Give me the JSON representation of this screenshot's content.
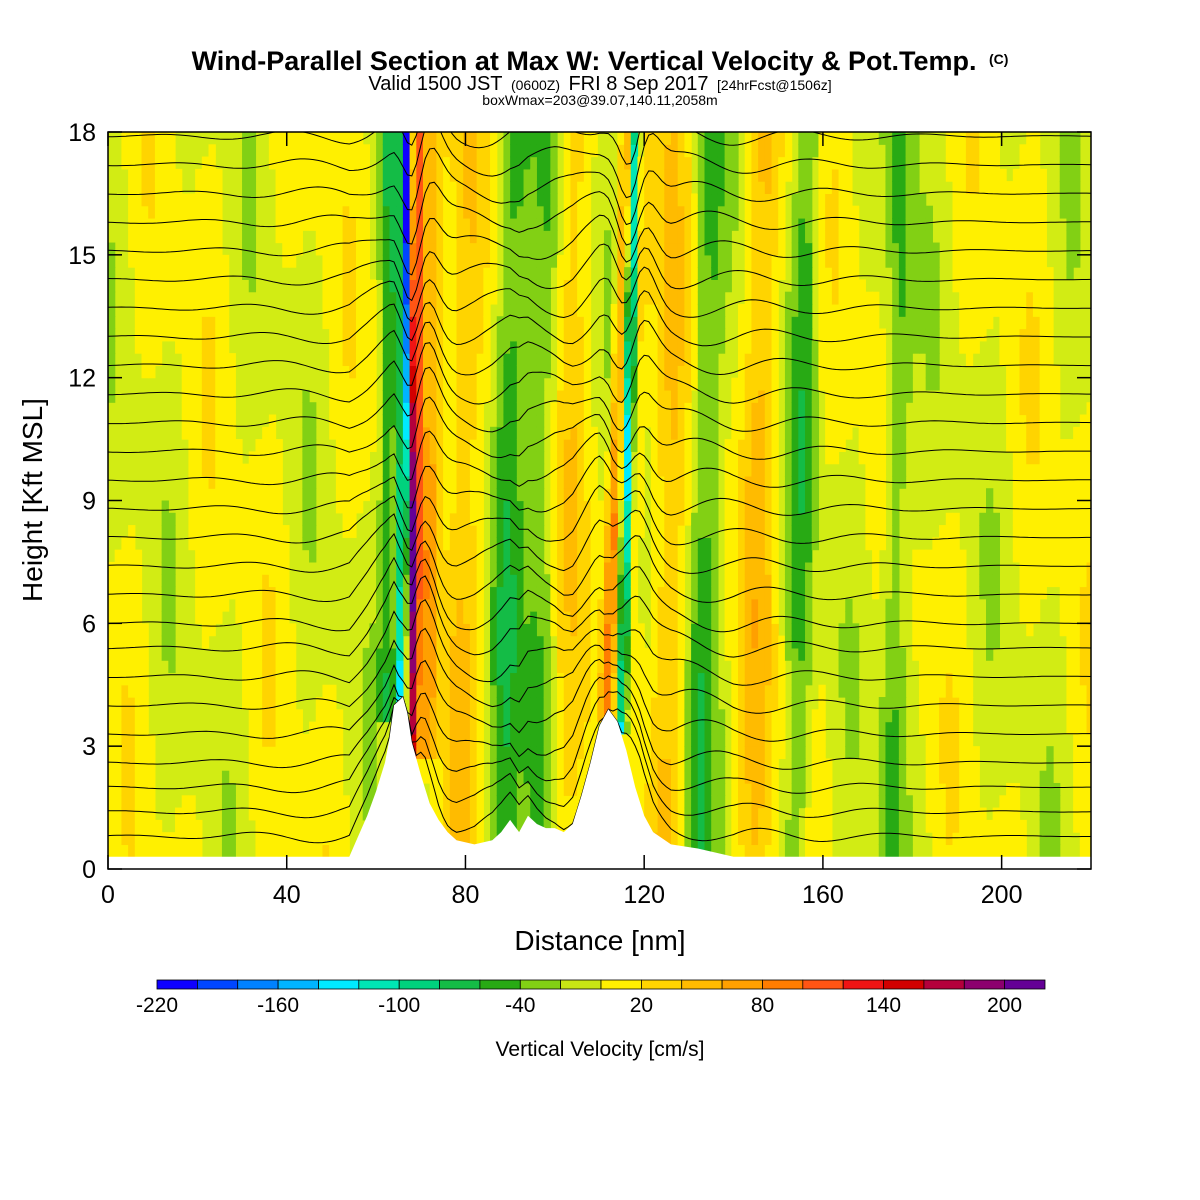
{
  "figure": {
    "title": "Wind-Parallel Section at Max W: Vertical Velocity & Pot.Temp.",
    "title_mark": "(C)",
    "subtitle_part1": "Valid 1500 JST",
    "subtitle_utc": "(0600Z)",
    "subtitle_part2": "FRI 8 Sep 2017",
    "subtitle_fcst": "[24hrFcst@1506z]",
    "subtitle2": "boxWmax=203@39.07,140.11,2058m"
  },
  "chart_data": {
    "type": "heatmap",
    "xlabel": "Distance [nm]",
    "ylabel": "Height [Kft MSL]",
    "xlim": [
      0,
      220
    ],
    "ylim": [
      0,
      18
    ],
    "xticks": [
      0,
      40,
      80,
      120,
      160,
      200
    ],
    "yticks": [
      0,
      3,
      6,
      9,
      12,
      15,
      18
    ],
    "terrain": [
      [
        0,
        0.3
      ],
      [
        54,
        0.3
      ],
      [
        56,
        0.8
      ],
      [
        58,
        1.3
      ],
      [
        60,
        1.9
      ],
      [
        62,
        2.6
      ],
      [
        63,
        3.2
      ],
      [
        64,
        4.0
      ],
      [
        66,
        4.2
      ],
      [
        67,
        3.8
      ],
      [
        68,
        3.1
      ],
      [
        70,
        2.3
      ],
      [
        72,
        1.6
      ],
      [
        74,
        1.2
      ],
      [
        76,
        0.9
      ],
      [
        78,
        0.7
      ],
      [
        82,
        0.6
      ],
      [
        86,
        0.7
      ],
      [
        88,
        0.9
      ],
      [
        90,
        1.2
      ],
      [
        92,
        0.9
      ],
      [
        94,
        1.3
      ],
      [
        96,
        1.1
      ],
      [
        98,
        1.0
      ],
      [
        100,
        1.0
      ],
      [
        102,
        0.9
      ],
      [
        104,
        1.1
      ],
      [
        106,
        1.8
      ],
      [
        108,
        2.6
      ],
      [
        110,
        3.5
      ],
      [
        112,
        3.9
      ],
      [
        114,
        3.6
      ],
      [
        116,
        2.9
      ],
      [
        118,
        2.0
      ],
      [
        120,
        1.3
      ],
      [
        122,
        0.9
      ],
      [
        126,
        0.6
      ],
      [
        132,
        0.5
      ],
      [
        136,
        0.4
      ],
      [
        140,
        0.3
      ],
      [
        220,
        0.3
      ]
    ],
    "updrafts": [
      {
        "x_base": 67.5,
        "x_top": 69,
        "y_base": 3.0,
        "y_top": 18,
        "peak_w": 203
      },
      {
        "x_base": 111.5,
        "x_top": 116,
        "y_base": 4.0,
        "y_top": 18,
        "peak_w": 110
      }
    ],
    "downdrafts": [
      {
        "x_base": 66,
        "x_top": 67,
        "y_base": 4.0,
        "y_top": 18,
        "min_w": -220
      },
      {
        "x_base": 115,
        "x_top": 118,
        "y_base": 3.5,
        "y_top": 18,
        "min_w": -150
      }
    ],
    "isentrope_heights": [
      0.8,
      1.4,
      2.0,
      2.6,
      3.3,
      4.0,
      4.7,
      5.4,
      6.0,
      6.7,
      7.4,
      8.1,
      8.8,
      9.5,
      10.2,
      10.9,
      11.6,
      12.3,
      13.0,
      13.7,
      14.4,
      15.1,
      15.8,
      16.5,
      17.2,
      17.9
    ],
    "colorbar": {
      "label": "Vertical Velocity [cm/s]",
      "levels": [
        -220,
        -200,
        -180,
        -160,
        -140,
        -120,
        -100,
        -80,
        -60,
        -40,
        -20,
        0,
        20,
        40,
        60,
        80,
        100,
        120,
        140,
        160,
        180,
        200,
        220
      ],
      "tick_labels": [
        "-220",
        "-160",
        "-100",
        "-40",
        "20",
        "80",
        "140",
        "200"
      ],
      "tick_values": [
        -220,
        -160,
        -100,
        -40,
        20,
        80,
        140,
        200
      ],
      "colors": [
        "#0f00ff",
        "#0046ff",
        "#0082ff",
        "#00b4ff",
        "#00eaff",
        "#00e6b4",
        "#00d27d",
        "#14bc46",
        "#28aa14",
        "#82d014",
        "#c8e614",
        "#fff000",
        "#ffd400",
        "#ffbb00",
        "#ffa000",
        "#ff7d00",
        "#ff5514",
        "#f01414",
        "#d20000",
        "#b4003c",
        "#8c006e",
        "#640096"
      ]
    },
    "colors": {
      "background_field": "#d2ec14",
      "isentrope_line": "#000000",
      "terrain": "#ffffff"
    }
  }
}
